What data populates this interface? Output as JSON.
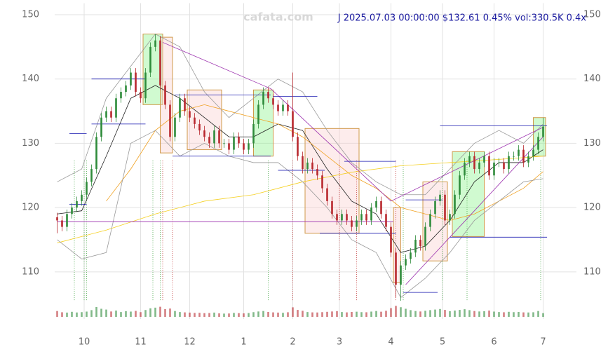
{
  "chart_data": {
    "type": "candlestick",
    "title": "J 2025.07.03 00:00:00 $132.61 0.45% vol:330.5K 0.4x",
    "watermark": "cafata.com",
    "up_color": "#2e8b3a",
    "down_color": "#b8282e",
    "grid": true,
    "xlim": [
      -1,
      201
    ],
    "ylim": [
      105.4,
      151.8
    ],
    "volume_lim": [
      0,
      1000
    ],
    "yticks": [
      110,
      120,
      130,
      140,
      150
    ],
    "xticks": [
      {
        "value": 11,
        "label": "10"
      },
      {
        "value": 34,
        "label": "11"
      },
      {
        "value": 54,
        "label": "12"
      },
      {
        "value": 76,
        "label": "1"
      },
      {
        "value": 96,
        "label": "2"
      },
      {
        "value": 115,
        "label": "3"
      },
      {
        "value": 136,
        "label": "4"
      },
      {
        "value": 157,
        "label": "5"
      },
      {
        "value": 178,
        "label": "6"
      },
      {
        "value": 198,
        "label": "7"
      }
    ],
    "x": [
      0,
      2,
      4,
      6,
      8,
      10,
      12,
      14,
      16,
      18,
      20,
      22,
      24,
      26,
      28,
      30,
      32,
      34,
      36,
      38,
      40,
      42,
      44,
      46,
      48,
      50,
      52,
      54,
      56,
      58,
      60,
      62,
      64,
      66,
      68,
      70,
      72,
      74,
      76,
      78,
      80,
      82,
      84,
      86,
      88,
      90,
      92,
      94,
      96,
      98,
      100,
      102,
      104,
      106,
      108,
      110,
      112,
      114,
      116,
      118,
      120,
      122,
      124,
      126,
      128,
      130,
      132,
      134,
      136,
      138,
      140,
      142,
      144,
      146,
      148,
      150,
      152,
      154,
      156,
      158,
      160,
      162,
      164,
      166,
      168,
      170,
      172,
      174,
      176,
      178,
      180,
      182,
      184,
      186,
      188,
      190,
      192,
      194,
      196,
      198
    ],
    "open": [
      118.5,
      118,
      117,
      119,
      120,
      121,
      122,
      124,
      126,
      131,
      134,
      135,
      134,
      137,
      138,
      139,
      141,
      138,
      137,
      141,
      145,
      146,
      139,
      136,
      131,
      134,
      137,
      135,
      134,
      133,
      132,
      131,
      130,
      132,
      130,
      130,
      129,
      131,
      130,
      129,
      130,
      133,
      136,
      138,
      137,
      136,
      135,
      136,
      135,
      131,
      128,
      126,
      127,
      126,
      125,
      123,
      121,
      119,
      118,
      119,
      118,
      117,
      118,
      119,
      118,
      120,
      121,
      119,
      117,
      113,
      108,
      111,
      112,
      113,
      115,
      114,
      117,
      119,
      121,
      122,
      118,
      119,
      122,
      125,
      127,
      128,
      126,
      127,
      128,
      125,
      127,
      127,
      126,
      128,
      128,
      129,
      127,
      128,
      129,
      131
    ],
    "high": [
      119.2,
      118.7,
      119.7,
      120.7,
      121.7,
      122.7,
      124.7,
      126.7,
      131.7,
      134.7,
      135.7,
      135.7,
      137.7,
      138.7,
      139.7,
      141.7,
      141.7,
      138.7,
      141.7,
      145.7,
      147,
      146.7,
      139.7,
      136.7,
      134.7,
      137.7,
      137.7,
      135.7,
      134.7,
      133.7,
      132.7,
      131.7,
      132.7,
      132.7,
      130.7,
      130.7,
      131.7,
      131.7,
      130.7,
      130.7,
      133.7,
      136.7,
      138.7,
      138.7,
      137.7,
      136.7,
      136.7,
      136.7,
      141,
      131.7,
      128.7,
      127.7,
      127.7,
      126.7,
      125.7,
      123.7,
      121.7,
      119.7,
      119.7,
      119.7,
      118.7,
      118.7,
      119.7,
      119.7,
      120.7,
      121.7,
      121.7,
      119.7,
      117.7,
      113.7,
      111.7,
      112.7,
      113.7,
      115.7,
      115.7,
      117.7,
      119.7,
      121.7,
      122.7,
      122.7,
      119.7,
      122.7,
      125.7,
      127.7,
      128.7,
      128.7,
      127.7,
      128.7,
      128.7,
      127.7,
      127.7,
      127.7,
      128.7,
      128.7,
      129.7,
      129.7,
      128.7,
      129.7,
      131.7,
      134
    ],
    "low": [
      116,
      116.3,
      116.3,
      118.3,
      119.3,
      120.3,
      121.3,
      123.3,
      125.3,
      130.3,
      133.3,
      133.3,
      133.3,
      136.3,
      137.3,
      138.3,
      137.3,
      136.3,
      136.3,
      140.3,
      144.3,
      138.3,
      135.3,
      130.3,
      130.3,
      133.3,
      134.3,
      133.3,
      132.3,
      131.3,
      130.3,
      129.3,
      129.3,
      129.3,
      129.3,
      128.3,
      128.3,
      129.3,
      128.3,
      128.3,
      129.3,
      132.3,
      135.3,
      136.3,
      135.3,
      134.3,
      134.3,
      134.3,
      130.3,
      127.3,
      125.3,
      125.3,
      125.3,
      124.3,
      122.3,
      120.3,
      118.3,
      117.3,
      117.3,
      117.3,
      116.3,
      116.3,
      117.3,
      117.3,
      117.3,
      119.3,
      118.3,
      116.3,
      112.3,
      106,
      105.5,
      110.3,
      111.3,
      112.3,
      113.3,
      113.3,
      116.3,
      118.3,
      120.3,
      117.3,
      117.3,
      118.3,
      121.3,
      124.3,
      126.3,
      125.3,
      125.3,
      126.3,
      124.3,
      124.3,
      126.3,
      125.3,
      125.3,
      127.3,
      127.3,
      126.3,
      126.3,
      127.3,
      128.3,
      130.3
    ],
    "close": [
      118,
      117,
      119,
      120,
      121,
      122,
      124,
      126,
      131,
      134,
      135,
      134,
      137,
      138,
      139,
      141,
      138,
      137,
      141,
      145,
      146,
      139,
      136,
      131,
      134,
      137,
      135,
      134,
      133,
      132,
      131,
      130,
      132,
      130,
      130,
      129,
      131,
      130,
      129,
      130,
      133,
      136,
      138,
      137,
      136,
      135,
      136,
      135,
      131,
      128,
      126,
      127,
      126,
      125,
      123,
      121,
      119,
      118,
      119,
      118,
      117,
      118,
      119,
      118,
      120,
      121,
      119,
      117,
      113,
      108,
      111,
      112,
      113,
      115,
      114,
      117,
      119,
      121,
      122,
      118,
      119,
      122,
      125,
      127,
      128,
      126,
      127,
      128,
      125,
      127,
      127,
      126,
      128,
      128,
      129,
      127,
      128,
      129,
      131,
      132.6
    ],
    "volume": [
      520,
      410,
      380,
      450,
      390,
      420,
      470,
      600,
      880,
      720,
      650,
      480,
      560,
      430,
      510,
      470,
      530,
      420,
      610,
      760,
      820,
      900,
      690,
      740,
      520,
      430,
      400,
      380,
      350,
      360,
      330,
      340,
      380,
      310,
      290,
      300,
      350,
      330,
      310,
      340,
      420,
      480,
      520,
      440,
      400,
      380,
      360,
      410,
      850,
      620,
      540,
      430,
      400,
      390,
      420,
      450,
      480,
      510,
      430,
      400,
      440,
      460,
      420,
      410,
      470,
      520,
      460,
      540,
      780,
      980,
      860,
      720,
      600,
      520,
      480,
      540,
      600,
      650,
      700,
      620,
      500,
      560,
      620,
      680,
      600,
      520,
      480,
      500,
      560,
      470,
      430,
      410,
      450,
      420,
      440,
      400,
      390,
      410,
      520,
      330.5
    ],
    "lines": [
      {
        "color": "#222222",
        "x": [
          0,
          10,
          20,
          30,
          40,
          50,
          60,
          70,
          80,
          90,
          100,
          110,
          120,
          130,
          140,
          150,
          160,
          170,
          180,
          190,
          198
        ],
        "values": [
          119,
          119.5,
          128,
          137,
          139,
          137,
          134,
          131,
          131,
          133,
          132,
          126,
          121,
          119,
          113,
          114,
          118,
          124,
          127,
          127,
          129
        ]
      },
      {
        "color": "#f0a020",
        "x": [
          20,
          30,
          40,
          50,
          60,
          70,
          80,
          90,
          100,
          110,
          120,
          130,
          140,
          150,
          160,
          170,
          180,
          190,
          198
        ],
        "values": [
          121,
          126,
          132,
          135,
          136,
          135,
          134,
          133,
          131,
          128,
          125,
          123,
          120,
          119,
          118,
          119,
          121,
          123,
          125.6
        ]
      },
      {
        "color": "#f5d020",
        "x": [
          0,
          20,
          40,
          60,
          80,
          100,
          120,
          140,
          160,
          180,
          198
        ],
        "values": [
          114.5,
          116.5,
          119,
          121,
          122,
          124,
          125.5,
          126.5,
          127,
          127.5,
          128
        ]
      },
      {
        "color": "#999999",
        "x": [
          0,
          10,
          20,
          30,
          40,
          50,
          60,
          70,
          80,
          90,
          100,
          110,
          120,
          130,
          140,
          150,
          160,
          170,
          180,
          190,
          198
        ],
        "values": [
          124,
          126,
          137,
          142,
          147,
          145,
          138,
          134,
          137,
          140,
          138,
          132,
          127,
          124,
          122,
          122,
          126,
          130,
          132,
          130,
          133
        ]
      },
      {
        "color": "#999999",
        "x": [
          0,
          10,
          20,
          30,
          40,
          50,
          60,
          70,
          80,
          90,
          100,
          110,
          120,
          130,
          140,
          150,
          160,
          170,
          180,
          190,
          198
        ],
        "values": [
          115,
          112,
          113,
          130,
          132,
          128,
          130,
          128,
          127,
          127,
          124,
          120,
          115,
          113,
          106,
          109,
          113,
          118,
          121,
          124,
          124.5
        ]
      },
      {
        "color": "#9b2fae",
        "x": [
          43,
          87,
          136
        ],
        "values": [
          145.7,
          138.5,
          121
        ]
      },
      {
        "color": "#9b2fae",
        "x": [
          136,
          198
        ],
        "values": [
          121,
          132.5
        ]
      },
      {
        "color": "#9b2fae",
        "x": [
          142,
          198
        ],
        "values": [
          108,
          131
        ]
      }
    ],
    "boxes": [
      {
        "x0": 35,
        "x1": 43,
        "y0": 136,
        "y1": 147,
        "color": "green"
      },
      {
        "x0": 42,
        "x1": 47,
        "y0": 128.5,
        "y1": 146.5,
        "color": "red"
      },
      {
        "x0": 53,
        "x1": 67,
        "y0": 129,
        "y1": 138.3,
        "color": "red"
      },
      {
        "x0": 80,
        "x1": 88,
        "y0": 128,
        "y1": 138.3,
        "color": "green"
      },
      {
        "x0": 101,
        "x1": 123,
        "y0": 116,
        "y1": 132.3,
        "color": "red"
      },
      {
        "x0": 137,
        "x1": 140,
        "y0": 108.3,
        "y1": 120,
        "color": "red"
      },
      {
        "x0": 149,
        "x1": 159,
        "y0": 111.7,
        "y1": 124,
        "color": "red"
      },
      {
        "x0": 161,
        "x1": 174,
        "y0": 115.5,
        "y1": 128.7,
        "color": "green"
      },
      {
        "x0": 194,
        "x1": 199,
        "y0": 128,
        "y1": 134,
        "color": "green"
      }
    ],
    "levels": [
      {
        "x0": 14,
        "x1": 36,
        "y": 140,
        "color": "#1a1ab0"
      },
      {
        "x0": 5,
        "x1": 12,
        "y": 131.5,
        "color": "#1a1ab0"
      },
      {
        "x0": 14,
        "x1": 36,
        "y": 133,
        "color": "#1a1ab0"
      },
      {
        "x0": 5,
        "x1": 12,
        "y": 120.5,
        "color": "#1a1ab0"
      },
      {
        "x0": 48,
        "x1": 87,
        "y": 137.5,
        "color": "#1a1ab0"
      },
      {
        "x0": 47,
        "x1": 87,
        "y": 128,
        "color": "#1a1ab0"
      },
      {
        "x0": 88,
        "x1": 106,
        "y": 137.3,
        "color": "#1a1ab0"
      },
      {
        "x0": 90,
        "x1": 109,
        "y": 125.8,
        "color": "#1a1ab0"
      },
      {
        "x0": 117,
        "x1": 138,
        "y": 127.2,
        "color": "#1a1ab0"
      },
      {
        "x0": 107,
        "x1": 138,
        "y": 116,
        "color": "#1a1ab0"
      },
      {
        "x0": 142,
        "x1": 157,
        "y": 121.2,
        "color": "#1a1ab0"
      },
      {
        "x0": 141,
        "x1": 155,
        "y": 106.8,
        "color": "#1a1ab0"
      },
      {
        "x0": 156,
        "x1": 199.6,
        "y": 132.7,
        "color": "#1a1ab0"
      },
      {
        "x0": 160,
        "x1": 199.6,
        "y": 115.4,
        "color": "#1a1ab0"
      },
      {
        "x0": 0,
        "x1": 137,
        "y": 117.8,
        "color": "#9b2fae"
      }
    ],
    "signals": [
      {
        "x": 7,
        "color": "green"
      },
      {
        "x": 11,
        "color": "green"
      },
      {
        "x": 12,
        "color": "green"
      },
      {
        "x": 39,
        "color": "green"
      },
      {
        "x": 42,
        "color": "green"
      },
      {
        "x": 43,
        "color": "red"
      },
      {
        "x": 47,
        "color": "red"
      },
      {
        "x": 86,
        "color": "green"
      },
      {
        "x": 96,
        "color": "red"
      },
      {
        "x": 115,
        "color": "red"
      },
      {
        "x": 122,
        "color": "red"
      },
      {
        "x": 138,
        "color": "red"
      },
      {
        "x": 141,
        "color": "green"
      },
      {
        "x": 157,
        "color": "green"
      },
      {
        "x": 167,
        "color": "green"
      },
      {
        "x": 197,
        "color": "green"
      }
    ]
  }
}
